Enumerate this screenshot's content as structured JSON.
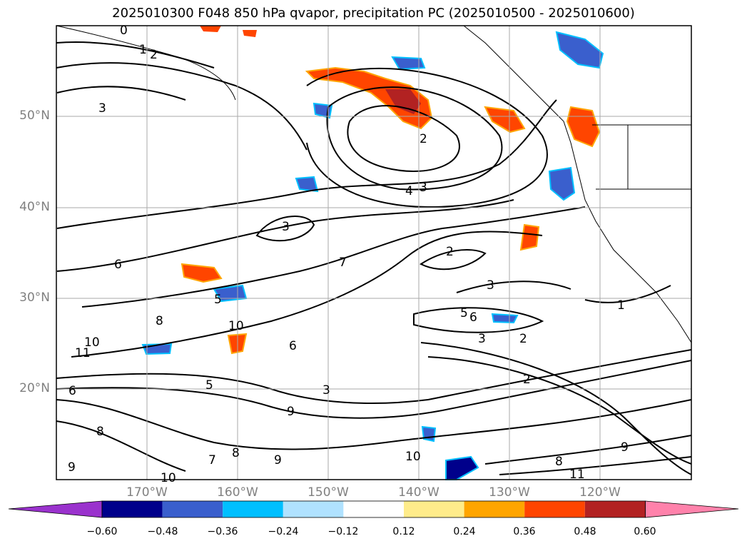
{
  "title": "2025010300 F048 850 hPa qvapor, precipitation PC (2025010500 - 2025010600)",
  "map": {
    "lat_labels": [
      "50°N",
      "40°N",
      "30°N",
      "20°N"
    ],
    "lon_labels": [
      "170°W",
      "160°W",
      "150°W",
      "140°W",
      "130°W",
      "120°W"
    ],
    "contour_labels": [
      "0",
      "1",
      "2",
      "3",
      "4",
      "5",
      "6",
      "7",
      "8",
      "9",
      "10",
      "11"
    ]
  },
  "colorbar": {
    "ticks": [
      "−0.60",
      "−0.48",
      "−0.36",
      "−0.24",
      "−0.12",
      "0.12",
      "0.24",
      "0.36",
      "0.48",
      "0.60"
    ],
    "colors": [
      "#9a32cd",
      "#00008b",
      "#3a5fcd",
      "#00bfff",
      "#b0e2ff",
      "#ffffff",
      "#ffec8b",
      "#ffa500",
      "#ff4500",
      "#b22222",
      "#ff82ab"
    ]
  }
}
